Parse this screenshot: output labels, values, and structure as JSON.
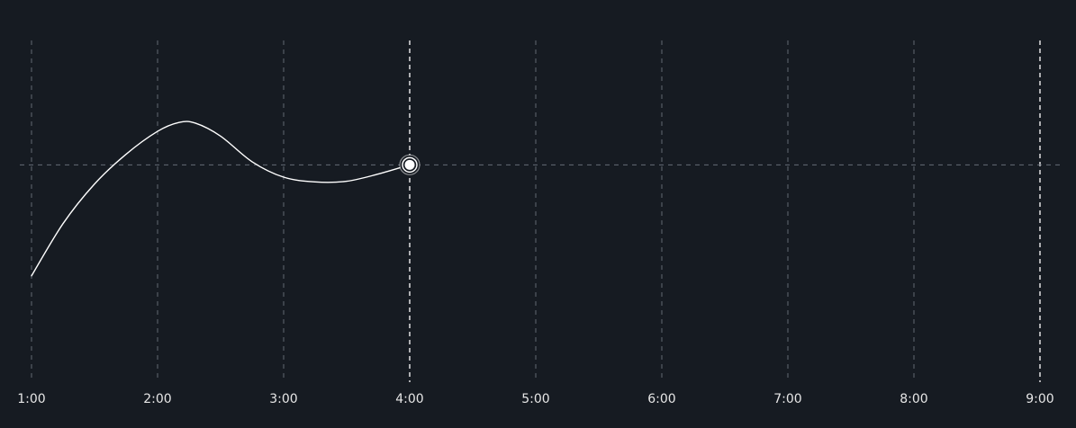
{
  "chart_data": {
    "type": "line",
    "title": "",
    "xlabel": "",
    "ylabel": "",
    "x_ticks": [
      "1:00",
      "2:00",
      "3:00",
      "4:00",
      "5:00",
      "6:00",
      "7:00",
      "8:00",
      "9:00"
    ],
    "xlim": [
      1,
      9
    ],
    "ylim": [
      0,
      1
    ],
    "grid": {
      "vertical": true,
      "horizontal_reference": true
    },
    "series": [
      {
        "x": [
          1.0,
          1.25,
          1.5,
          1.75,
          2.0,
          2.17,
          2.3,
          2.5,
          2.75,
          3.0,
          3.25,
          3.5,
          3.75,
          4.0
        ],
        "y": [
          0.311,
          0.464,
          0.58,
          0.667,
          0.734,
          0.76,
          0.758,
          0.72,
          0.645,
          0.6,
          0.586,
          0.588,
          0.609,
          0.636
        ]
      }
    ],
    "highlight": {
      "x": 4.0,
      "y": 0.636
    },
    "reference_line": {
      "y": 0.636
    },
    "colors": {
      "background": "#161b22",
      "line": "#ffffff",
      "grid": "#6e7681",
      "cursor": "#ffffff",
      "tick_text": "#e6e6e6"
    }
  }
}
